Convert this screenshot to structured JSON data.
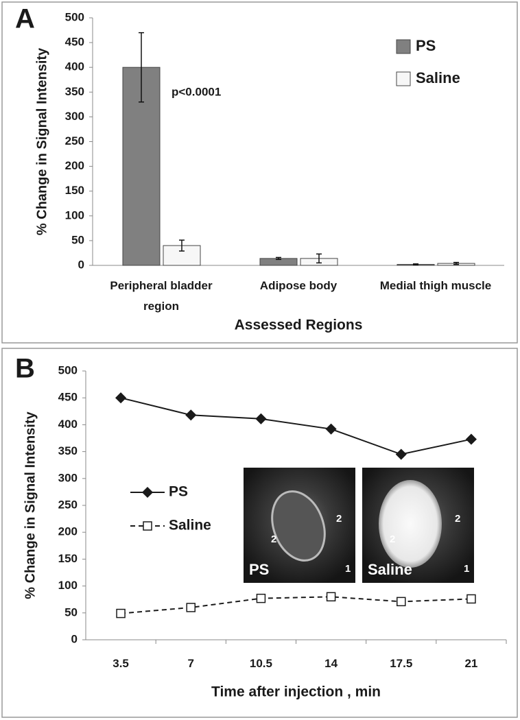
{
  "chart_data": [
    {
      "type": "bar",
      "panel_label": "A",
      "y_label": "% Change in Signal Intensity",
      "x_label": "Assessed Regions",
      "categories": [
        "Peripheral bladder region",
        "Adipose body",
        "Medial thigh muscle"
      ],
      "series": [
        {
          "name": "PS",
          "color": "#808080",
          "values": [
            400,
            14,
            2
          ],
          "errors": [
            70,
            2,
            1
          ]
        },
        {
          "name": "Saline",
          "color": "#f7f7f7",
          "values": [
            40,
            14,
            4
          ],
          "errors": [
            11,
            9,
            2
          ]
        }
      ],
      "annotation": "p<0.0001",
      "ylim": [
        0,
        500
      ],
      "yticks": [
        0,
        50,
        100,
        150,
        200,
        250,
        300,
        350,
        400,
        450,
        500
      ]
    },
    {
      "type": "line",
      "panel_label": "B",
      "y_label": "% Change in Signal Intensity",
      "x_label": "Time after injection , min",
      "categories": [
        "3.5",
        "7",
        "10.5",
        "14",
        "17.5",
        "21"
      ],
      "series": [
        {
          "name": "PS",
          "color": "#1a1a1a",
          "marker": "diamond",
          "line_style": "solid",
          "values": [
            450,
            418,
            411,
            392,
            345,
            373
          ]
        },
        {
          "name": "Saline",
          "color": "#1a1a1a",
          "marker": "square-open",
          "line_style": "dashed",
          "values": [
            49,
            60,
            77,
            80,
            71,
            76
          ]
        }
      ],
      "ylim": [
        0,
        500
      ],
      "yticks": [
        0,
        50,
        100,
        150,
        200,
        250,
        300,
        350,
        400,
        450,
        500
      ],
      "inset": [
        {
          "label": "PS",
          "numbers": [
            "2",
            "2",
            "1"
          ]
        },
        {
          "label": "Saline",
          "numbers": [
            "2",
            "2",
            "1"
          ]
        }
      ]
    }
  ]
}
